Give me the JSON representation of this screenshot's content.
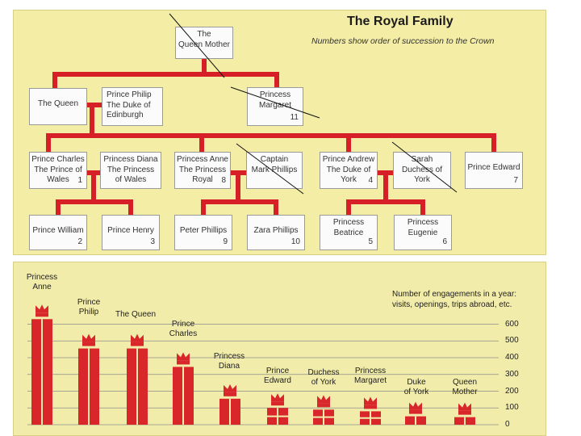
{
  "family_tree": {
    "title": "The Royal Family",
    "subtitle": "Numbers show order of succession to the Crown",
    "people": [
      {
        "id": "queen-mother",
        "name": "The Queen Mother",
        "lines": [
          "The",
          "Queen Mother"
        ],
        "number": ""
      },
      {
        "id": "the-queen",
        "name": "The Queen",
        "lines": [
          "The Queen"
        ],
        "number": ""
      },
      {
        "id": "prince-philip",
        "name": "Prince Philip",
        "lines": [
          "Prince Philip",
          "The Duke of",
          "Edinburgh"
        ],
        "number": ""
      },
      {
        "id": "princess-margaret",
        "name": "Princess Margaret",
        "lines": [
          "Princess",
          "Margaret"
        ],
        "number": "11"
      },
      {
        "id": "prince-charles",
        "name": "Prince Charles",
        "lines": [
          "Prince Charles",
          "The Prince of",
          "Wales"
        ],
        "number": "1"
      },
      {
        "id": "princess-diana",
        "name": "Princess Diana",
        "lines": [
          "Princess Diana",
          "The Princess",
          "of Wales"
        ],
        "number": ""
      },
      {
        "id": "princess-anne",
        "name": "Princess Anne",
        "lines": [
          "Princess Anne",
          "The Princess",
          "Royal"
        ],
        "number": "8"
      },
      {
        "id": "captain-mark-phillips",
        "name": "Captain Mark Phillips",
        "lines": [
          "Captain",
          "Mark Phillips"
        ],
        "number": ""
      },
      {
        "id": "prince-andrew",
        "name": "Prince Andrew",
        "lines": [
          "Prince Andrew",
          "The Duke of",
          "York"
        ],
        "number": "4"
      },
      {
        "id": "sarah-duchess-of-york",
        "name": "Sarah Duchess of York",
        "lines": [
          "Sarah",
          "Duchess of",
          "York"
        ],
        "number": ""
      },
      {
        "id": "prince-edward",
        "name": "Prince Edward",
        "lines": [
          "Prince Edward"
        ],
        "number": "7"
      },
      {
        "id": "prince-william",
        "name": "Prince William",
        "lines": [
          "Prince William"
        ],
        "number": "2"
      },
      {
        "id": "prince-henry",
        "name": "Prince Henry",
        "lines": [
          "Prince Henry"
        ],
        "number": "3"
      },
      {
        "id": "peter-phillips",
        "name": "Peter Phillips",
        "lines": [
          "Peter Phillips"
        ],
        "number": "9"
      },
      {
        "id": "zara-phillips",
        "name": "Zara Phillips",
        "lines": [
          "Zara Phillips"
        ],
        "number": "10"
      },
      {
        "id": "princess-beatrice",
        "name": "Princess Beatrice",
        "lines": [
          "Princess",
          "Beatrice"
        ],
        "number": "5"
      },
      {
        "id": "princess-eugenie",
        "name": "Princess Eugenie",
        "lines": [
          "Princess",
          "Eugenie"
        ],
        "number": "6"
      }
    ]
  },
  "chart_data": {
    "type": "bar",
    "ylabel": "Number of engagements in a year: visits, openings, trips abroad, etc.",
    "ylim": [
      0,
      600
    ],
    "yticks": [
      0,
      100,
      200,
      300,
      400,
      500,
      600
    ],
    "grid": true,
    "categories": [
      {
        "label": "Princess Anne",
        "lines": [
          "Princess",
          "Anne"
        ]
      },
      {
        "label": "Prince Philip",
        "lines": [
          "Prince",
          "Philip"
        ]
      },
      {
        "label": "The Queen",
        "lines": [
          "The Queen"
        ]
      },
      {
        "label": "Prince Charles",
        "lines": [
          "Prince",
          "Charles"
        ]
      },
      {
        "label": "Princess Diana",
        "lines": [
          "Princess",
          "Diana"
        ]
      },
      {
        "label": "Prince Edward",
        "lines": [
          "Prince",
          "Edward"
        ]
      },
      {
        "label": "Duchess of York",
        "lines": [
          "Duchess",
          "of York"
        ]
      },
      {
        "label": "Princess Margaret",
        "lines": [
          "Princess",
          "Margaret"
        ]
      },
      {
        "label": "Duke of York",
        "lines": [
          "Duke",
          "of York"
        ]
      },
      {
        "label": "Queen Mother",
        "lines": [
          "Queen",
          "Mother"
        ]
      }
    ],
    "values": [
      630,
      455,
      455,
      345,
      155,
      100,
      90,
      80,
      50,
      45
    ]
  },
  "colors": {
    "line_red": "#d61f26",
    "bar_red": "#d8262a",
    "crown_red": "#d8262a",
    "panel_bg": "#f3eda6",
    "box_bg": "#fbfbfb"
  }
}
